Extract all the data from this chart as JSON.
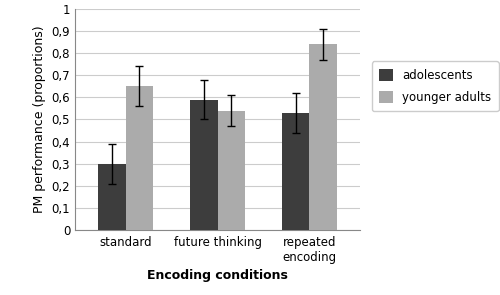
{
  "categories": [
    "standard",
    "future thinking",
    "repeated\nencoding"
  ],
  "adolescents_values": [
    0.3,
    0.59,
    0.53
  ],
  "younger_adults_values": [
    0.65,
    0.54,
    0.84
  ],
  "adolescents_errors": [
    0.09,
    0.09,
    0.09
  ],
  "younger_adults_errors": [
    0.09,
    0.07,
    0.07
  ],
  "adolescents_color": "#3d3d3d",
  "younger_adults_color": "#ababab",
  "adolescents_label": "adolescents",
  "younger_adults_label": "younger adults",
  "ylabel": "PM performance (proportions)",
  "xlabel": "Encoding conditions",
  "ylim": [
    0,
    1.0
  ],
  "yticks": [
    0,
    0.1,
    0.2,
    0.3,
    0.4,
    0.5,
    0.6,
    0.7,
    0.8,
    0.9,
    1
  ],
  "ytick_labels": [
    "0",
    "0,1",
    "0,2",
    "0,3",
    "0,4",
    "0,5",
    "0,6",
    "0,7",
    "0,8",
    "0,9",
    "1"
  ],
  "bar_width": 0.3,
  "group_positions": [
    0.0,
    1.0,
    2.0
  ],
  "background_color": "#ffffff",
  "grid_color": "#cccccc",
  "capsize": 3,
  "legend_fontsize": 8.5,
  "axis_label_fontsize": 9,
  "ylabel_fontsize": 9,
  "tick_fontsize": 8.5,
  "figwidth": 5.0,
  "figheight": 2.95,
  "dpi": 100
}
